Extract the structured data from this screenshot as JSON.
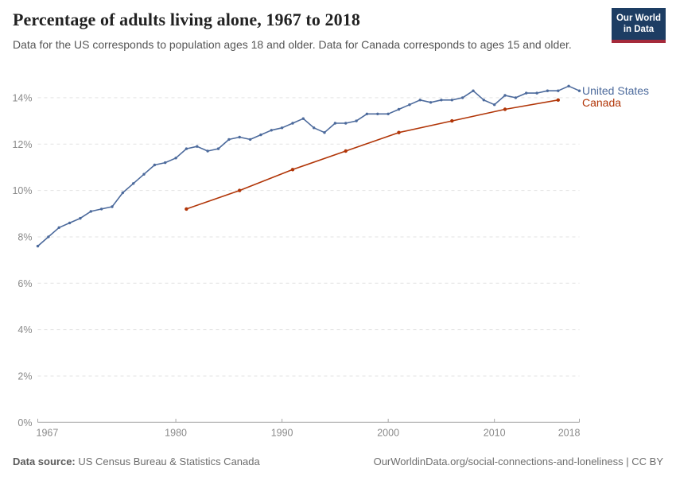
{
  "header": {
    "title": "Percentage of adults living alone, 1967 to 2018",
    "subtitle": "Data for the US corresponds to population ages 18 and older. Data for Canada corresponds to ages 15 and older.",
    "logo": {
      "line1": "Our World",
      "line2": "in Data"
    }
  },
  "chart_data": {
    "type": "line",
    "title": "Percentage of adults living alone, 1967 to 2018",
    "xlabel": "",
    "ylabel": "",
    "xlim": [
      1967,
      2018
    ],
    "ylim": [
      0,
      15
    ],
    "grid": "horizontal-dashed",
    "legend_position": "right-of-line-ends",
    "x_ticks": [
      {
        "value": 1967,
        "label": "1967",
        "align": "start"
      },
      {
        "value": 1980,
        "label": "1980",
        "align": "middle"
      },
      {
        "value": 1990,
        "label": "1990",
        "align": "middle"
      },
      {
        "value": 2000,
        "label": "2000",
        "align": "middle"
      },
      {
        "value": 2010,
        "label": "2010",
        "align": "middle"
      },
      {
        "value": 2018,
        "label": "2018",
        "align": "end"
      }
    ],
    "y_ticks": [
      {
        "value": 0,
        "label": "0%"
      },
      {
        "value": 2,
        "label": "2%"
      },
      {
        "value": 4,
        "label": "4%"
      },
      {
        "value": 6,
        "label": "6%"
      },
      {
        "value": 8,
        "label": "8%"
      },
      {
        "value": 10,
        "label": "10%"
      },
      {
        "value": 12,
        "label": "12%"
      },
      {
        "value": 14,
        "label": "14%"
      }
    ],
    "series": [
      {
        "name": "United States",
        "color": "#4C6A9C",
        "x": [
          1967,
          1968,
          1969,
          1970,
          1971,
          1972,
          1973,
          1974,
          1975,
          1976,
          1977,
          1978,
          1979,
          1980,
          1981,
          1982,
          1983,
          1984,
          1985,
          1986,
          1987,
          1988,
          1989,
          1990,
          1991,
          1992,
          1993,
          1994,
          1995,
          1996,
          1997,
          1998,
          1999,
          2000,
          2001,
          2002,
          2003,
          2004,
          2005,
          2006,
          2007,
          2008,
          2009,
          2010,
          2011,
          2012,
          2013,
          2014,
          2015,
          2016,
          2017,
          2018
        ],
        "values": [
          7.6,
          8.0,
          8.4,
          8.6,
          8.8,
          9.1,
          9.2,
          9.3,
          9.9,
          10.3,
          10.7,
          11.1,
          11.2,
          11.4,
          11.8,
          11.9,
          11.7,
          11.8,
          12.2,
          12.3,
          12.2,
          12.4,
          12.6,
          12.7,
          12.9,
          13.1,
          12.7,
          12.5,
          12.9,
          12.9,
          13.0,
          13.3,
          13.3,
          13.3,
          13.5,
          13.7,
          13.9,
          13.8,
          13.9,
          13.9,
          14.0,
          14.3,
          13.9,
          13.7,
          14.1,
          14.0,
          14.2,
          14.2,
          14.3,
          14.3,
          14.5,
          14.3
        ]
      },
      {
        "name": "Canada",
        "color": "#B13507",
        "x": [
          1981,
          1986,
          1991,
          1996,
          2001,
          2006,
          2011,
          2016
        ],
        "values": [
          9.2,
          10.0,
          10.9,
          11.7,
          12.5,
          13.0,
          13.5,
          13.9
        ]
      }
    ]
  },
  "footer": {
    "datasource_label": "Data source:",
    "datasource_value": "US Census Bureau & Statistics Canada",
    "credit": "OurWorldinData.org/social-connections-and-loneliness | CC BY"
  }
}
